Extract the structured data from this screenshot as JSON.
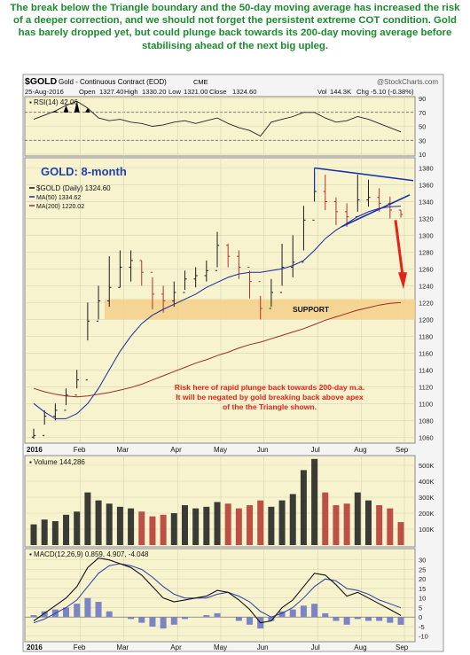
{
  "caption": "The break below the Triangle boundary and the 50-day moving average has increased the risk of a deeper correction, and we should not forget the persistent extreme COT condition. Gold has barely dropped yet, but could plunge back towards its 200-day moving average before stabilising ahead of the next big upleg.",
  "header": {
    "symbol": "$GOLD",
    "name": "Gold - Continuous Contract (EOD)",
    "exchange": "CME",
    "brand": "@StockCharts.com",
    "date": "25-Aug-2016",
    "open_label": "Open",
    "open": "1327.40",
    "high_label": "High",
    "high": "1330.20",
    "low_label": "Low",
    "low": "1321.00",
    "close_label": "Close",
    "close": "1324.60",
    "vol_label": "Vol",
    "vol": "144.3K",
    "chg_label": "Chg",
    "chg": "-5.10 (-0.38%)"
  },
  "colors": {
    "panel_bg": "#f7f3cf",
    "price_bar": "#b3322b",
    "ma50": "#1a2a9c",
    "ma200": "#9b2b2b",
    "support_band": "#f5cf8a",
    "triangle": "#1830b0",
    "annotation_red": "#e3231a",
    "title_blue": "#2040b0",
    "caption_green": "#1a8c2e",
    "macd_hist": "#7b84c4"
  },
  "chart_data": [
    {
      "panel": "rsi",
      "type": "line",
      "label": "RSI(14) 42.06",
      "ylim": [
        10,
        90
      ],
      "yticks": [
        10,
        30,
        50,
        70,
        90
      ],
      "reference_lines": [
        30,
        70
      ],
      "x": [
        "Jan-04",
        "Jan-11",
        "Jan-18",
        "Jan-25",
        "Feb-01",
        "Feb-08",
        "Feb-15",
        "Feb-22",
        "Feb-29",
        "Mar-07",
        "Mar-14",
        "Mar-21",
        "Mar-28",
        "Apr-04",
        "Apr-11",
        "Apr-18",
        "Apr-25",
        "May-02",
        "May-09",
        "May-16",
        "May-23",
        "May-30",
        "Jun-06",
        "Jun-13",
        "Jun-20",
        "Jun-27",
        "Jul-04",
        "Jul-11",
        "Jul-18",
        "Jul-25",
        "Aug-01",
        "Aug-08",
        "Aug-15",
        "Aug-22",
        "Aug-25"
      ],
      "values": [
        60,
        66,
        72,
        80,
        86,
        76,
        62,
        58,
        60,
        56,
        54,
        50,
        52,
        56,
        58,
        54,
        58,
        62,
        54,
        48,
        44,
        36,
        56,
        60,
        64,
        70,
        70,
        62,
        56,
        58,
        64,
        60,
        54,
        48,
        42
      ]
    },
    {
      "panel": "price",
      "type": "ohlc",
      "title": "GOLD: 8-month",
      "legend": [
        "$GOLD (Daily) 1324.60",
        "MA(50) 1334.62",
        "MA(200) 1220.02"
      ],
      "ylim": [
        1055,
        1390
      ],
      "yticks": [
        1060,
        1080,
        1100,
        1120,
        1140,
        1160,
        1180,
        1200,
        1220,
        1240,
        1260,
        1280,
        1300,
        1320,
        1340,
        1360,
        1380
      ],
      "x_months": [
        "2016",
        "Feb",
        "Mar",
        "Apr",
        "May",
        "Jun",
        "Jul",
        "Aug",
        "Sep"
      ],
      "x": [
        "Jan-04",
        "Jan-11",
        "Jan-18",
        "Jan-25",
        "Feb-01",
        "Feb-08",
        "Feb-15",
        "Feb-22",
        "Feb-29",
        "Mar-07",
        "Mar-14",
        "Mar-21",
        "Mar-28",
        "Apr-04",
        "Apr-11",
        "Apr-18",
        "Apr-25",
        "May-02",
        "May-09",
        "May-16",
        "May-23",
        "May-30",
        "Jun-06",
        "Jun-13",
        "Jun-20",
        "Jun-27",
        "Jul-04",
        "Jul-11",
        "Jul-18",
        "Jul-25",
        "Aug-01",
        "Aug-08",
        "Aug-15",
        "Aug-22",
        "Aug-25"
      ],
      "close": [
        1062,
        1085,
        1092,
        1110,
        1128,
        1198,
        1222,
        1238,
        1262,
        1270,
        1256,
        1230,
        1222,
        1232,
        1248,
        1252,
        1258,
        1288,
        1275,
        1262,
        1245,
        1213,
        1232,
        1262,
        1268,
        1318,
        1352,
        1340,
        1328,
        1322,
        1342,
        1345,
        1338,
        1330,
        1324.6
      ],
      "high": [
        1070,
        1092,
        1100,
        1118,
        1140,
        1220,
        1240,
        1275,
        1282,
        1282,
        1270,
        1250,
        1240,
        1245,
        1258,
        1262,
        1270,
        1304,
        1290,
        1282,
        1258,
        1228,
        1248,
        1290,
        1300,
        1335,
        1375,
        1372,
        1345,
        1338,
        1372,
        1366,
        1356,
        1346,
        1330.2
      ],
      "low": [
        1058,
        1075,
        1080,
        1098,
        1118,
        1175,
        1200,
        1215,
        1238,
        1245,
        1240,
        1212,
        1208,
        1215,
        1235,
        1238,
        1245,
        1262,
        1262,
        1248,
        1225,
        1200,
        1215,
        1240,
        1250,
        1282,
        1340,
        1330,
        1312,
        1310,
        1328,
        1334,
        1328,
        1320,
        1321.0
      ],
      "ma50": [
        1100,
        1090,
        1082,
        1082,
        1088,
        1100,
        1118,
        1140,
        1162,
        1180,
        1195,
        1205,
        1212,
        1218,
        1224,
        1230,
        1238,
        1244,
        1250,
        1254,
        1256,
        1256,
        1258,
        1260,
        1264,
        1270,
        1282,
        1296,
        1306,
        1314,
        1322,
        1328,
        1332,
        1334,
        1334.6
      ],
      "ma200": [
        1118,
        1114,
        1111,
        1109,
        1108,
        1109,
        1111,
        1113,
        1116,
        1119,
        1123,
        1128,
        1133,
        1138,
        1143,
        1148,
        1152,
        1157,
        1161,
        1166,
        1170,
        1173,
        1177,
        1181,
        1185,
        1189,
        1194,
        1199,
        1203,
        1207,
        1211,
        1214,
        1217,
        1219,
        1220.0
      ],
      "annotations": {
        "support_label": "SUPPORT",
        "support_range": [
          1200,
          1224
        ],
        "risk_note": [
          "Risk here of rapid plunge back towards 200-day m.a.",
          "It will be negated by gold breaking back above apex",
          "of the the Triangle shown."
        ]
      }
    },
    {
      "panel": "volume",
      "type": "bar",
      "label": "Volume 144,286",
      "ylim": [
        0,
        550
      ],
      "yticks_labels": [
        "100K",
        "200K",
        "300K",
        "400K",
        "500K"
      ],
      "yticks": [
        100,
        200,
        300,
        400,
        500
      ],
      "x": [
        "Jan-04",
        "Jan-11",
        "Jan-18",
        "Jan-25",
        "Feb-01",
        "Feb-08",
        "Feb-15",
        "Feb-22",
        "Feb-29",
        "Mar-07",
        "Mar-14",
        "Mar-21",
        "Mar-28",
        "Apr-04",
        "Apr-11",
        "Apr-18",
        "Apr-25",
        "May-02",
        "May-09",
        "May-16",
        "May-23",
        "May-30",
        "Jun-06",
        "Jun-13",
        "Jun-20",
        "Jun-27",
        "Jul-04",
        "Jul-11",
        "Jul-18",
        "Jul-25",
        "Aug-01",
        "Aug-08",
        "Aug-15",
        "Aug-22",
        "Aug-25"
      ],
      "values": [
        130,
        160,
        150,
        190,
        210,
        330,
        280,
        260,
        240,
        230,
        210,
        180,
        190,
        200,
        250,
        230,
        240,
        270,
        260,
        230,
        250,
        280,
        240,
        280,
        320,
        470,
        540,
        330,
        250,
        260,
        330,
        280,
        250,
        230,
        144
      ]
    },
    {
      "panel": "macd",
      "type": "line",
      "label": "MACD(12,26,9) 0.859, 4.907, -4.048",
      "ylim": [
        -12,
        35
      ],
      "yticks": [
        -10,
        -5,
        0,
        5,
        10,
        15,
        20,
        25,
        30
      ],
      "x": [
        "Jan-04",
        "Jan-11",
        "Jan-18",
        "Jan-25",
        "Feb-01",
        "Feb-08",
        "Feb-15",
        "Feb-22",
        "Feb-29",
        "Mar-07",
        "Mar-14",
        "Mar-21",
        "Mar-28",
        "Apr-04",
        "Apr-11",
        "Apr-18",
        "Apr-25",
        "May-02",
        "May-09",
        "May-16",
        "May-23",
        "May-30",
        "Jun-06",
        "Jun-13",
        "Jun-20",
        "Jun-27",
        "Jul-04",
        "Jul-11",
        "Jul-18",
        "Jul-25",
        "Aug-01",
        "Aug-08",
        "Aug-15",
        "Aug-22",
        "Aug-25"
      ],
      "series": [
        {
          "name": "MACD",
          "values": [
            -2,
            2,
            6,
            10,
            16,
            26,
            31,
            30,
            28,
            26,
            22,
            16,
            10,
            8,
            9,
            10,
            11,
            14,
            13,
            9,
            4,
            -3,
            -2,
            5,
            9,
            16,
            23,
            22,
            17,
            11,
            13,
            10,
            7,
            4,
            0.859
          ]
        },
        {
          "name": "Signal",
          "values": [
            -3,
            -1,
            2,
            5,
            9,
            16,
            23,
            27,
            28,
            27,
            25,
            21,
            16,
            12,
            10,
            10,
            10,
            12,
            13,
            11,
            8,
            3,
            0,
            2,
            5,
            10,
            16,
            20,
            19,
            15,
            14,
            12,
            9,
            7,
            4.907
          ]
        },
        {
          "name": "Histogram",
          "values": [
            1,
            3,
            4,
            5,
            7,
            10,
            8,
            3,
            0,
            -1,
            -3,
            -5,
            -6,
            -4,
            -1,
            0,
            1,
            2,
            0,
            -2,
            -4,
            -6,
            -2,
            3,
            4,
            6,
            7,
            2,
            -2,
            -4,
            -1,
            -2,
            -2,
            -3,
            -4.048
          ]
        }
      ]
    }
  ]
}
